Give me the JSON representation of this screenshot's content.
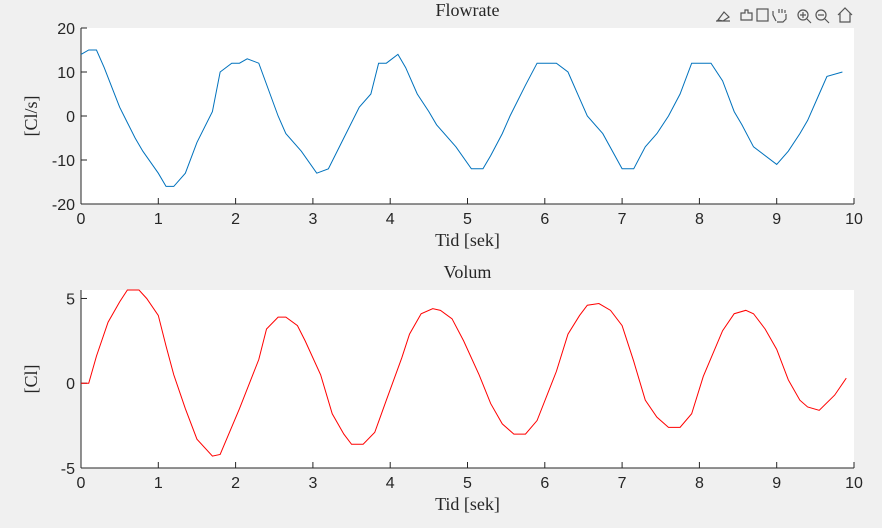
{
  "chart_data": [
    {
      "type": "line",
      "title": "Flowrate",
      "xlabel": "Tid [sek]",
      "ylabel": "[Cl/s]",
      "xlim": [
        0,
        10
      ],
      "xticks": [
        0,
        1,
        2,
        3,
        4,
        5,
        6,
        7,
        8,
        9,
        10
      ],
      "ylim": [
        -20,
        20
      ],
      "yticks": [
        -20,
        -10,
        0,
        10,
        20
      ],
      "series": [
        {
          "color": "#0072bd",
          "x": [
            0,
            0.1,
            0.2,
            0.3,
            0.4,
            0.5,
            0.6,
            0.7,
            0.8,
            0.9,
            1.0,
            1.1,
            1.2,
            1.35,
            1.5,
            1.7,
            1.8,
            1.95,
            2.05,
            2.15,
            2.3,
            2.55,
            2.65,
            2.85,
            3.05,
            3.2,
            3.4,
            3.6,
            3.75,
            3.85,
            3.95,
            4.1,
            4.2,
            4.35,
            4.5,
            4.6,
            4.85,
            5.05,
            5.2,
            5.3,
            5.45,
            5.55,
            5.75,
            5.9,
            6.0,
            6.15,
            6.3,
            6.45,
            6.55,
            6.75,
            7.0,
            7.15,
            7.3,
            7.45,
            7.6,
            7.75,
            7.9,
            8.0,
            8.15,
            8.3,
            8.45,
            8.55,
            8.7,
            9.0,
            9.15,
            9.3,
            9.4,
            9.55,
            9.65,
            9.85
          ],
          "values": [
            14,
            15,
            15,
            11,
            6.5,
            2,
            -1.5,
            -5,
            -8,
            -10.5,
            -13,
            -16,
            -16,
            -13,
            -6,
            1,
            10,
            12,
            12,
            13,
            12,
            0,
            -4,
            -8,
            -13,
            -12,
            -5,
            2,
            5,
            12,
            12,
            14,
            11,
            5,
            1,
            -2,
            -7,
            -12,
            -12,
            -9,
            -4,
            0,
            7,
            12,
            12,
            12,
            10,
            4,
            0,
            -4,
            -12,
            -12,
            -7,
            -4,
            0,
            5,
            12,
            12,
            12,
            8,
            1,
            -2,
            -7,
            -11,
            -8,
            -4,
            -1,
            5,
            9,
            10
          ]
        }
      ]
    },
    {
      "type": "line",
      "title": "Volum",
      "xlabel": "Tid [sek]",
      "ylabel": "[Cl]",
      "xlim": [
        0,
        10
      ],
      "xticks": [
        0,
        1,
        2,
        3,
        4,
        5,
        6,
        7,
        8,
        9,
        10
      ],
      "ylim": [
        -5,
        5.5
      ],
      "yticks": [
        -5,
        0,
        5
      ],
      "series": [
        {
          "color": "#ff0000",
          "x": [
            0,
            0.1,
            0.2,
            0.35,
            0.5,
            0.6,
            0.75,
            0.85,
            1.0,
            1.1,
            1.2,
            1.35,
            1.5,
            1.7,
            1.8,
            2.05,
            2.3,
            2.4,
            2.55,
            2.65,
            2.8,
            2.9,
            3.1,
            3.25,
            3.4,
            3.5,
            3.65,
            3.8,
            3.95,
            4.15,
            4.25,
            4.4,
            4.55,
            4.65,
            4.8,
            4.95,
            5.15,
            5.3,
            5.45,
            5.6,
            5.75,
            5.9,
            6.15,
            6.3,
            6.45,
            6.55,
            6.7,
            6.85,
            7.0,
            7.15,
            7.3,
            7.45,
            7.6,
            7.75,
            7.9,
            8.05,
            8.3,
            8.45,
            8.6,
            8.7,
            8.85,
            9.0,
            9.15,
            9.3,
            9.4,
            9.55,
            9.75,
            9.9
          ],
          "values": [
            0,
            0,
            1.6,
            3.6,
            4.8,
            5.5,
            5.5,
            5.0,
            4.0,
            2.2,
            0.5,
            -1.5,
            -3.3,
            -4.3,
            -4.2,
            -1.5,
            1.4,
            3.2,
            3.9,
            3.9,
            3.4,
            2.5,
            0.5,
            -1.8,
            -3.0,
            -3.6,
            -3.6,
            -2.9,
            -1.0,
            1.5,
            2.9,
            4.1,
            4.4,
            4.3,
            3.8,
            2.5,
            0.5,
            -1.2,
            -2.4,
            -3.0,
            -3.0,
            -2.2,
            0.7,
            2.9,
            4.0,
            4.6,
            4.7,
            4.3,
            3.4,
            1.3,
            -1.0,
            -2.0,
            -2.6,
            -2.6,
            -1.8,
            0.4,
            3.1,
            4.1,
            4.3,
            4.1,
            3.2,
            2.0,
            0.2,
            -1.0,
            -1.4,
            -1.6,
            -0.7,
            0.3
          ]
        }
      ]
    }
  ]
}
